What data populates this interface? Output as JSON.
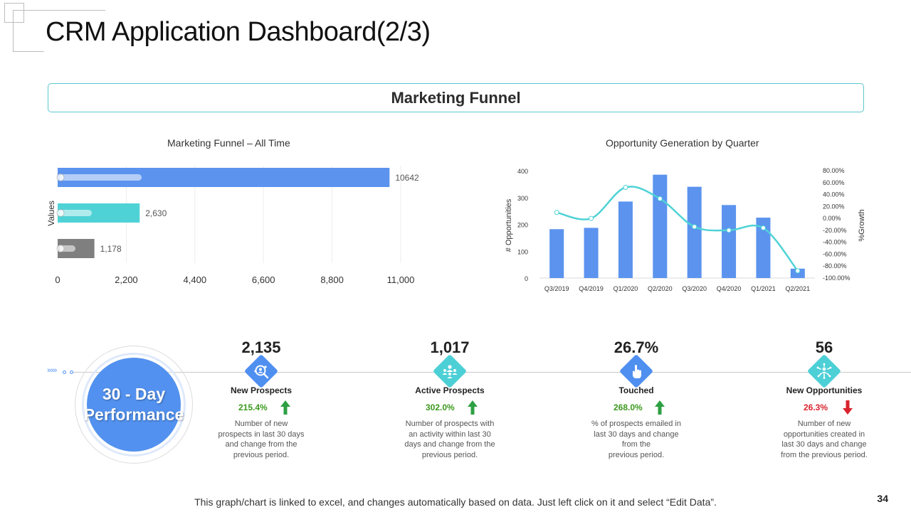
{
  "page": {
    "title": "CRM Application Dashboard(2/3)",
    "section_banner": "Marketing Funnel",
    "footer_note": "This graph/chart is linked to excel, and changes automatically based on data. Just left click on it and select “Edit Data”.",
    "page_number": "34"
  },
  "performance": {
    "line1": "30 - Day",
    "line2": "Performance",
    "kpis": [
      {
        "value": "2,135",
        "label": "New Prospects",
        "change": "215.4%",
        "trend": "up",
        "icon": "magnifier-people-icon",
        "color": "#4f8ff0",
        "desc": [
          "Number of new",
          "prospects in last 30 days",
          "and change from the",
          "previous period."
        ]
      },
      {
        "value": "1,017",
        "label": "Active Prospects",
        "change": "302.0%",
        "trend": "up",
        "icon": "team-icon",
        "color": "#4dcfd6",
        "desc": [
          "Number of prospects with",
          "an activity within last 30",
          "days and change from the",
          "previous period."
        ]
      },
      {
        "value": "26.7%",
        "label": "Touched",
        "change": "268.0%",
        "trend": "up",
        "icon": "hand-pointer-icon",
        "color": "#4f8ff0",
        "desc": [
          "% of prospects emailed in",
          "last 30 days and change",
          "from the",
          "previous period."
        ]
      },
      {
        "value": "56",
        "label": "New Opportunities",
        "change": "26.3%",
        "trend": "down",
        "icon": "network-people-icon",
        "color": "#4dcfd6",
        "desc": [
          "Number of new",
          "opportunities created in",
          "last 30 days and change",
          "from the previous period."
        ]
      }
    ],
    "colors": {
      "up": "#2ea043",
      "down": "#d9232e",
      "up_text": "#3c9a1e",
      "down_text": "#d9232e"
    }
  },
  "chart_data": [
    {
      "type": "bar",
      "orientation": "horizontal",
      "title": "Marketing Funnel – All Time",
      "ylabel": "Values",
      "xlim": [
        0,
        11000
      ],
      "xticks": [
        "0",
        "2,200",
        "4,400",
        "6,600",
        "8,800",
        "11,000"
      ],
      "xtick_values": [
        0,
        2200,
        4400,
        6600,
        8800,
        11000
      ],
      "values": [
        10642,
        2630,
        1178
      ],
      "value_labels": [
        "10642",
        "2,630",
        "1,178"
      ],
      "colors": [
        "#5b93ee",
        "#4fd2d6",
        "#7f7f7f"
      ],
      "legend": "none"
    },
    {
      "type": "bar",
      "title": "Opportunity Generation by Quarter",
      "ylabel": "# Opportunities",
      "y2label": "%Growth",
      "categories": [
        "Q3/2019",
        "Q4/2019",
        "Q1/2020",
        "Q2/2020",
        "Q3/2020",
        "Q4/2020",
        "Q1/2021",
        "Q2/2021"
      ],
      "ylim": [
        0,
        400
      ],
      "yticks": [
        "0",
        "100",
        "200",
        "300",
        "400"
      ],
      "ytick_values": [
        0,
        100,
        200,
        300,
        400
      ],
      "y2lim": [
        -100,
        80
      ],
      "y2ticks": [
        "80.00%",
        "60.00%",
        "40.00%",
        "20.00%",
        "0.00%",
        "-20.00%",
        "-40.00%",
        "-60.00%",
        "-80.00%",
        "-100.00%"
      ],
      "y2tick_values": [
        80,
        60,
        40,
        20,
        0,
        -20,
        -40,
        -60,
        -80,
        -100
      ],
      "series": [
        {
          "name": "# Opportunities",
          "kind": "bar",
          "axis": "left",
          "color": "#5b93ee",
          "values": [
            182,
            187,
            285,
            385,
            340,
            272,
            225,
            35
          ]
        },
        {
          "name": "%Growth",
          "kind": "line",
          "axis": "right",
          "color": "#4fd2d6",
          "values": [
            10,
            0,
            52,
            33,
            -14,
            -20,
            -16,
            -88
          ]
        }
      ]
    }
  ]
}
